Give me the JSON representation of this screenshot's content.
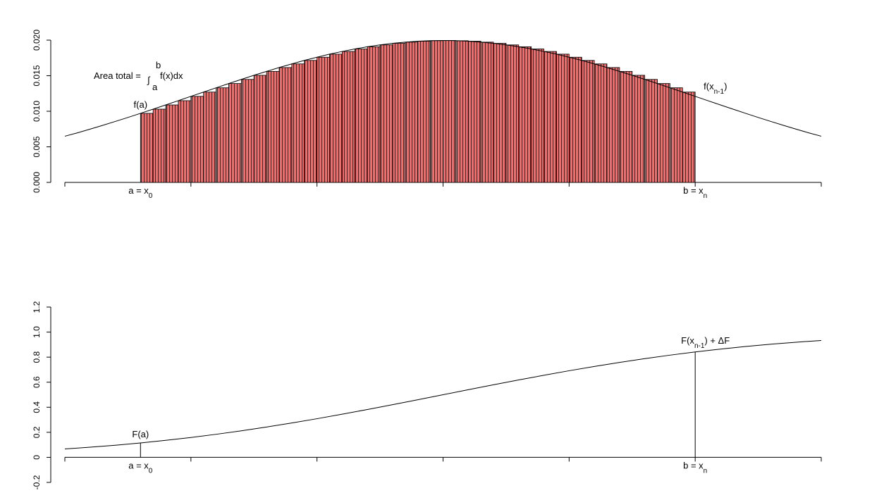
{
  "chart_data": [
    {
      "type": "bar-area",
      "x": [
        -30,
        -29,
        -28,
        -27,
        -26,
        -25,
        -24,
        -23,
        -22,
        -21,
        -20,
        -19,
        -18,
        -17,
        -16,
        -15,
        -14,
        -13,
        -12,
        -11,
        -10,
        -9,
        -8,
        -7,
        -6,
        -5,
        -4,
        -3,
        -2,
        -1,
        0,
        1,
        2,
        3,
        4,
        5,
        6,
        7,
        8,
        9,
        10,
        11,
        12,
        13,
        14,
        15,
        16,
        17,
        18,
        19,
        20,
        21,
        22,
        23,
        24,
        25,
        26,
        27,
        28,
        29,
        30
      ],
      "values": [
        0.00649,
        0.00697,
        0.00749,
        0.00802,
        0.00857,
        0.00913,
        0.00971,
        0.0103,
        0.01089,
        0.01149,
        0.0121,
        0.0127,
        0.0133,
        0.0139,
        0.01448,
        0.01506,
        0.01561,
        0.01615,
        0.01666,
        0.01715,
        0.0176,
        0.01803,
        0.01841,
        0.01876,
        0.01907,
        0.01933,
        0.01955,
        0.01972,
        0.01985,
        0.01992,
        0.01995,
        0.01992,
        0.01985,
        0.01972,
        0.01955,
        0.01933,
        0.01907,
        0.01876,
        0.01841,
        0.01803,
        0.0176,
        0.01715,
        0.01666,
        0.01615,
        0.01561,
        0.01506,
        0.01448,
        0.0139,
        0.0133,
        0.0127,
        0.0121,
        0.01149,
        0.01089,
        0.0103,
        0.00971,
        0.00913,
        0.00857,
        0.00802,
        0.00749,
        0.00697,
        0.00649
      ],
      "a": -24,
      "b": 20,
      "color": "#ff6666",
      "xlim": [
        -30,
        30
      ],
      "xticks": [
        -30,
        -20,
        -10,
        0,
        10,
        20,
        30
      ],
      "ylim": [
        0,
        0.02
      ],
      "yticks": [
        {
          "value": 0,
          "label": "0.000"
        },
        {
          "value": 0.005,
          "label": "0.005"
        },
        {
          "value": 0.01,
          "label": "0.010"
        },
        {
          "value": 0.015,
          "label": "0.015"
        },
        {
          "value": 0.02,
          "label": "0.020"
        }
      ],
      "labels": {
        "a": [
          "a = x",
          "0"
        ],
        "b": [
          "b = x",
          "n"
        ],
        "fa": "f(a)",
        "fn": [
          "f(x",
          "n-1",
          ")"
        ],
        "area": [
          "Area total = ",
          "∫",
          "b",
          "a",
          "f(x)dx"
        ]
      }
    },
    {
      "type": "line",
      "x": [
        -30,
        -28,
        -26,
        -24,
        -22,
        -20,
        -18,
        -16,
        -14,
        -12,
        -10,
        -8,
        -6,
        -4,
        -2,
        0,
        2,
        4,
        6,
        8,
        10,
        12,
        14,
        16,
        18,
        20,
        22,
        24,
        26,
        28,
        30
      ],
      "values": [
        0.0668,
        0.0808,
        0.0968,
        0.1151,
        0.1357,
        0.1587,
        0.1841,
        0.2119,
        0.242,
        0.2743,
        0.3085,
        0.3446,
        0.3821,
        0.4207,
        0.4602,
        0.5,
        0.5398,
        0.5793,
        0.6179,
        0.6554,
        0.6915,
        0.7257,
        0.758,
        0.7881,
        0.8159,
        0.8413,
        0.8643,
        0.8849,
        0.9032,
        0.9192,
        0.9332
      ],
      "a": -24,
      "b": 20,
      "xlim": [
        -30,
        30
      ],
      "xticks": [
        -30,
        -20,
        -10,
        0,
        10,
        20,
        30
      ],
      "ylim": [
        -0.2,
        1.2
      ],
      "yticks": [
        -0.2,
        0,
        0.2,
        0.4,
        0.6,
        0.8,
        {
          "value": 1,
          "label": "1.0"
        },
        1.2
      ],
      "labels": {
        "a": [
          "a = x",
          "0"
        ],
        "b": [
          "b = x",
          "n"
        ],
        "fa": "F(a)",
        "fn": [
          "F(x",
          "n-1",
          ") + ΔF"
        ]
      }
    }
  ]
}
